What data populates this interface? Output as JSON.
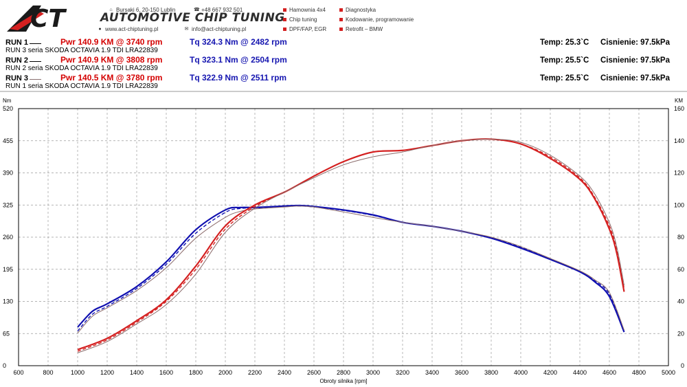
{
  "header": {
    "logo_text": "ACT",
    "brand": "AUTOMOTIVE CHIP TUNING",
    "contact": [
      {
        "icon": "home-icon",
        "text": "Bursaki 6, 20-150 Lublin"
      },
      {
        "icon": "phone-icon",
        "text": "+48 667 932 501"
      },
      {
        "icon": "web-icon",
        "text": "www.act-chiptuning.pl"
      },
      {
        "icon": "mail-icon",
        "text": "info@act-chiptuning.pl"
      }
    ],
    "services": [
      "Hamownia 4x4",
      "Diagnostyka",
      "Chip tuning",
      "Kodowanie, programowanie",
      "DPF/FAP, EGR",
      "Retrofit – BMW"
    ],
    "accent": "#d42020"
  },
  "runs": [
    {
      "label": "RUN 1",
      "pwr": "Pwr  140.9 KM @ 3740 rpm",
      "tq": "Tq 324.3 Nm @ 2482 rpm",
      "desc": "RUN 3 seria SKODA OCTAVIA 1.9 TDI LRA22839",
      "temp": "Temp: 25.3`C",
      "pressure": "Cisnienie: 97.5kPa",
      "line_color": "#000000",
      "line_style": "solid"
    },
    {
      "label": "RUN 2",
      "pwr": "Pwr  140.9 KM @ 3808 rpm",
      "tq": "Tq 323.1 Nm @ 2504 rpm",
      "desc": "RUN 2 seria SKODA OCTAVIA 1.9 TDI LRA22839",
      "temp": "Temp: 25.5`C",
      "pressure": "Cisnienie: 97.5kPa",
      "line_color": "#000000",
      "line_style": "solid"
    },
    {
      "label": "RUN 3",
      "pwr": "Pwr  140.5 KM @ 3780 rpm",
      "tq": "Tq 322.9 Nm @ 2511 rpm",
      "desc": "RUN 1 seria SKODA OCTAVIA 1.9 TDI LRA22839",
      "temp": "Temp: 25.5`C",
      "pressure": "Cisnienie: 97.5kPa",
      "line_color": "#8a7070",
      "line_style": "solid"
    }
  ],
  "chart_data": {
    "type": "line",
    "xlabel": "Obroty silnika [rpm]",
    "ylabel_left": "Nm",
    "ylabel_right": "KM",
    "xlim": [
      600,
      5000
    ],
    "x_ticks": [
      600,
      800,
      1000,
      1200,
      1400,
      1600,
      1800,
      2000,
      2200,
      2400,
      2600,
      2800,
      3000,
      3200,
      3400,
      3600,
      3800,
      4000,
      4200,
      4400,
      4600,
      4800,
      5000
    ],
    "ylim_left": [
      0,
      520
    ],
    "y_ticks_left": [
      0,
      65,
      130,
      195,
      260,
      325,
      390,
      455,
      520
    ],
    "ylim_right": [
      0,
      160
    ],
    "y_ticks_right": [
      0,
      20,
      40,
      60,
      80,
      100,
      120,
      140,
      160
    ],
    "grid": true,
    "torque_color": "#1010b0",
    "power_color": "#d42020",
    "series": [
      {
        "name": "RUN 1",
        "quantity": "torque",
        "axis": "left",
        "x": [
          1000,
          1100,
          1200,
          1400,
          1600,
          1800,
          2000,
          2100,
          2200,
          2400,
          2500,
          2600,
          2800,
          3000,
          3200,
          3400,
          3600,
          3800,
          4000,
          4200,
          4400,
          4500,
          4600,
          4700
        ],
        "y": [
          78,
          110,
          125,
          160,
          210,
          275,
          315,
          320,
          320,
          323,
          324,
          322,
          315,
          305,
          290,
          282,
          272,
          258,
          238,
          215,
          190,
          170,
          140,
          68
        ]
      },
      {
        "name": "RUN 2",
        "quantity": "torque",
        "axis": "left",
        "x": [
          1000,
          1100,
          1200,
          1400,
          1600,
          1800,
          2000,
          2100,
          2200,
          2400,
          2500,
          2600,
          2800,
          3000,
          3200,
          3400,
          3600,
          3800,
          4000,
          4200,
          4400,
          4500,
          4600,
          4700
        ],
        "y": [
          70,
          104,
          120,
          156,
          205,
          268,
          310,
          318,
          319,
          322,
          323,
          321,
          314,
          304,
          290,
          282,
          272,
          259,
          240,
          216,
          190,
          172,
          145,
          70
        ]
      },
      {
        "name": "RUN 3",
        "quantity": "torque",
        "axis": "left",
        "x": [
          1000,
          1100,
          1200,
          1400,
          1600,
          1800,
          2000,
          2100,
          2200,
          2400,
          2500,
          2600,
          2800,
          3000,
          3200,
          3400,
          3600,
          3800,
          4000,
          4200,
          4400,
          4500,
          4600,
          4700
        ],
        "y": [
          66,
          100,
          117,
          152,
          198,
          258,
          300,
          312,
          317,
          321,
          323,
          321,
          311,
          300,
          290,
          282,
          272,
          260,
          241,
          217,
          192,
          174,
          148,
          72
        ]
      },
      {
        "name": "RUN 1",
        "quantity": "power",
        "axis": "right",
        "x": [
          1000,
          1200,
          1400,
          1600,
          1800,
          2000,
          2200,
          2400,
          2600,
          2800,
          3000,
          3200,
          3400,
          3600,
          3800,
          4000,
          4200,
          4400,
          4500,
          4600,
          4650,
          4700
        ],
        "y": [
          10,
          17,
          28,
          41,
          62,
          87,
          100,
          108,
          118,
          127,
          133,
          134,
          137,
          140,
          141,
          138,
          129,
          116,
          104,
          85,
          70,
          46
        ]
      },
      {
        "name": "RUN 2",
        "quantity": "power",
        "axis": "right",
        "x": [
          1000,
          1200,
          1400,
          1600,
          1800,
          2000,
          2200,
          2400,
          2600,
          2800,
          3000,
          3200,
          3400,
          3600,
          3800,
          4000,
          4200,
          4400,
          4500,
          4600,
          4650,
          4700
        ],
        "y": [
          9,
          16,
          27,
          40,
          60,
          85,
          99,
          108,
          118,
          127,
          133,
          134,
          137,
          140,
          141,
          138,
          130,
          117,
          105,
          87,
          72,
          48
        ]
      },
      {
        "name": "RUN 3",
        "quantity": "power",
        "axis": "right",
        "x": [
          1000,
          1200,
          1400,
          1600,
          1800,
          2000,
          2200,
          2400,
          2600,
          2800,
          3000,
          3200,
          3400,
          3600,
          3800,
          4000,
          4200,
          4400,
          4500,
          4600,
          4650,
          4700
        ],
        "y": [
          8,
          15,
          26,
          38,
          57,
          83,
          98,
          108,
          117,
          125,
          130,
          133,
          137,
          140,
          141,
          139,
          131,
          118,
          107,
          89,
          74,
          50
        ]
      }
    ]
  }
}
